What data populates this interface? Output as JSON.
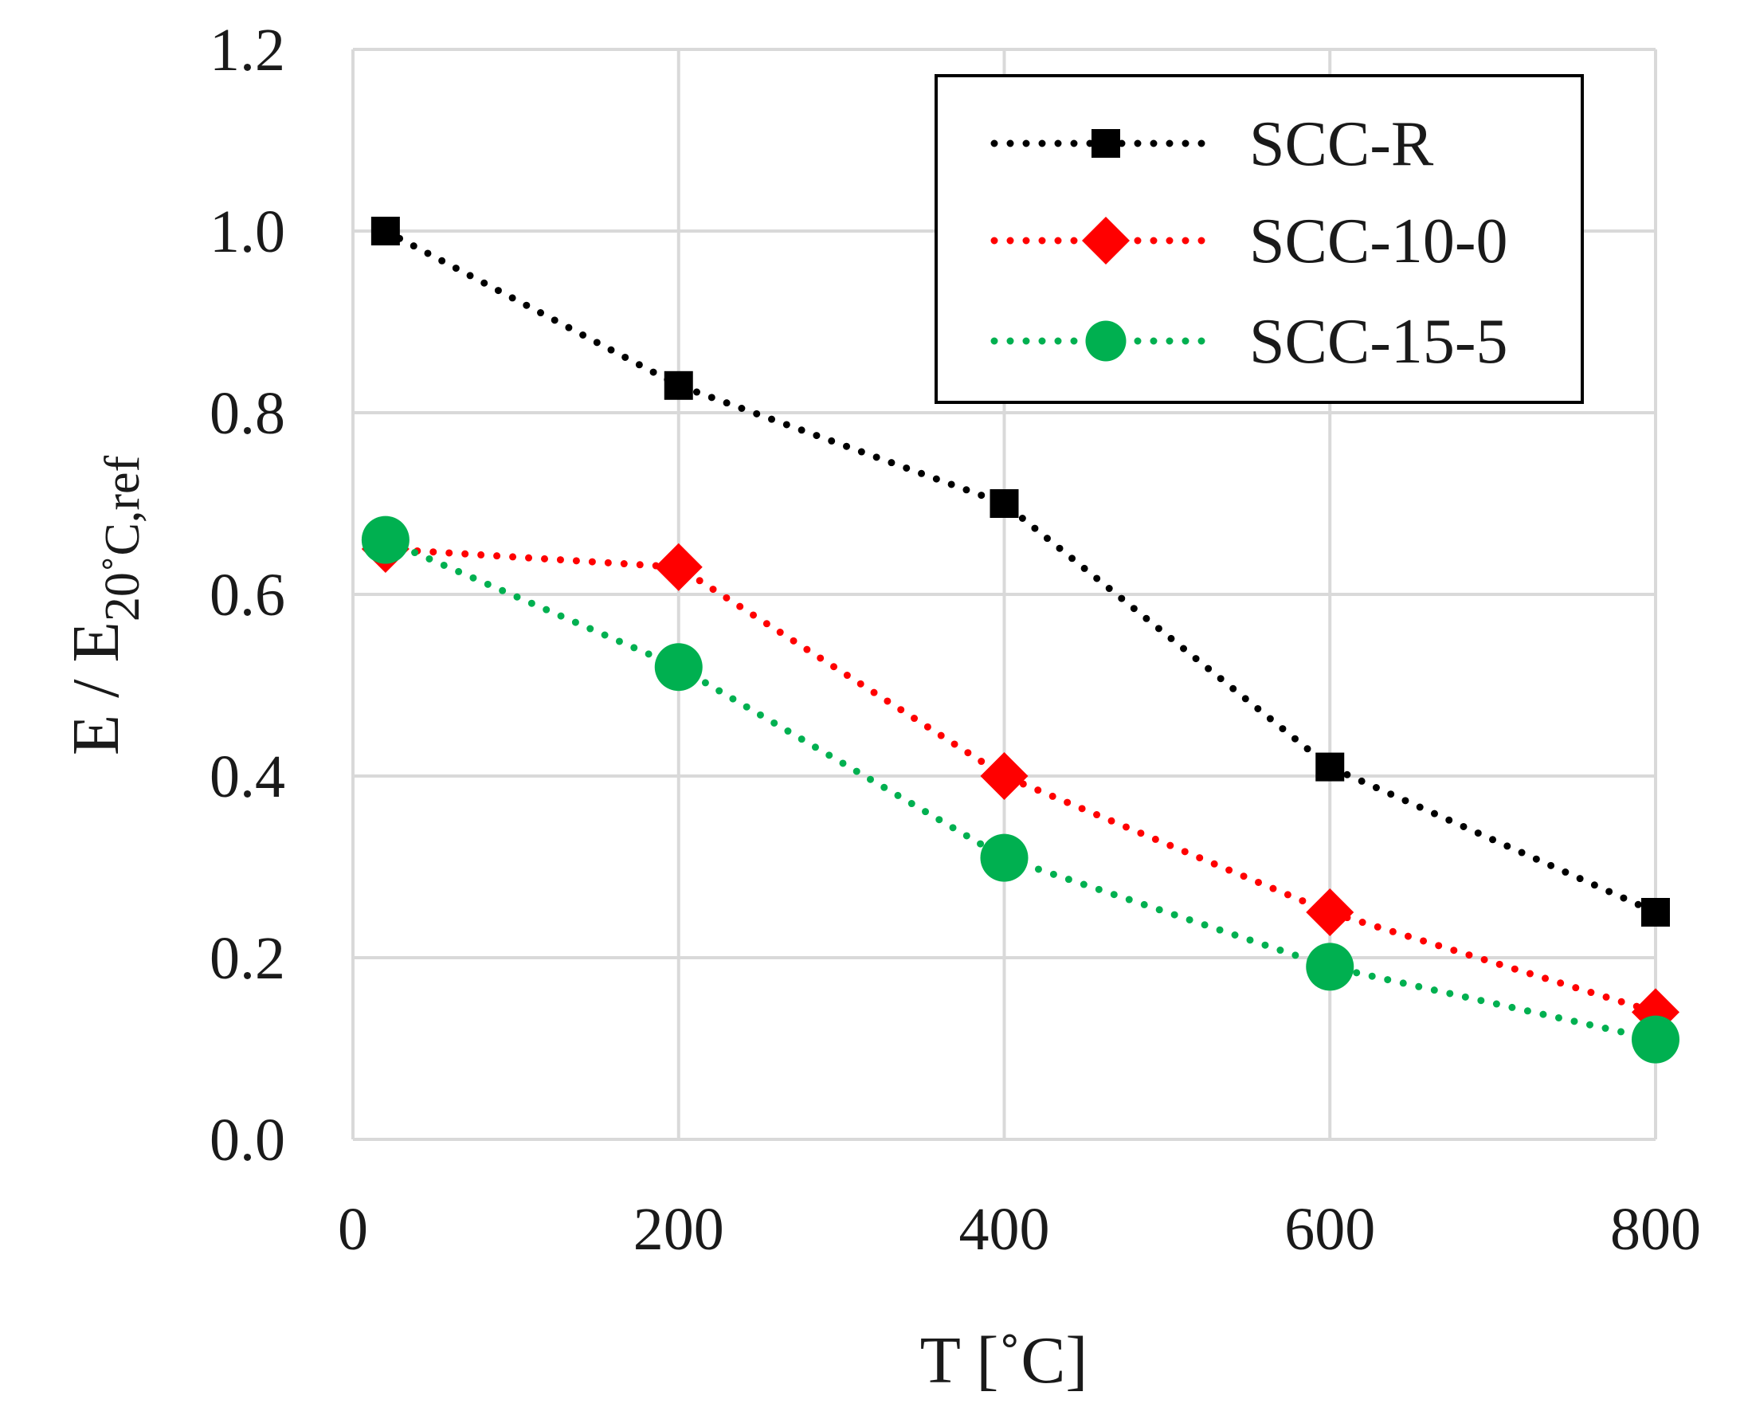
{
  "chart_data": {
    "type": "line",
    "title": "",
    "xlabel": "T [˚C]",
    "ylabel": "E / E",
    "ylabel_subscript": "20˚C,ref",
    "x": [
      20,
      200,
      400,
      600,
      800
    ],
    "xlim": [
      0,
      800
    ],
    "ylim": [
      0,
      1.2
    ],
    "x_ticks": [
      0,
      200,
      400,
      600,
      800
    ],
    "x_tick_labels": [
      "0",
      "200",
      "400",
      "600",
      "800"
    ],
    "y_ticks": [
      0,
      0.2,
      0.4,
      0.6,
      0.8,
      1.0,
      1.2
    ],
    "y_tick_labels": [
      "0.0",
      "0.2",
      "0.4",
      "0.6",
      "0.8",
      "1.0",
      "1.2"
    ],
    "grid": true,
    "legend_position": "top-right",
    "series": [
      {
        "name": "SCC-R",
        "color": "#000000",
        "marker": "square",
        "line_style": "dotted",
        "values": [
          1.0,
          0.83,
          0.7,
          0.41,
          0.25
        ]
      },
      {
        "name": "SCC-10-0",
        "color": "#ff0000",
        "marker": "diamond",
        "line_style": "dotted",
        "values": [
          0.65,
          0.63,
          0.4,
          0.25,
          0.14
        ]
      },
      {
        "name": "SCC-15-5",
        "color": "#00b050",
        "marker": "circle",
        "line_style": "dotted",
        "values": [
          0.66,
          0.52,
          0.31,
          0.19,
          0.11
        ]
      }
    ]
  }
}
